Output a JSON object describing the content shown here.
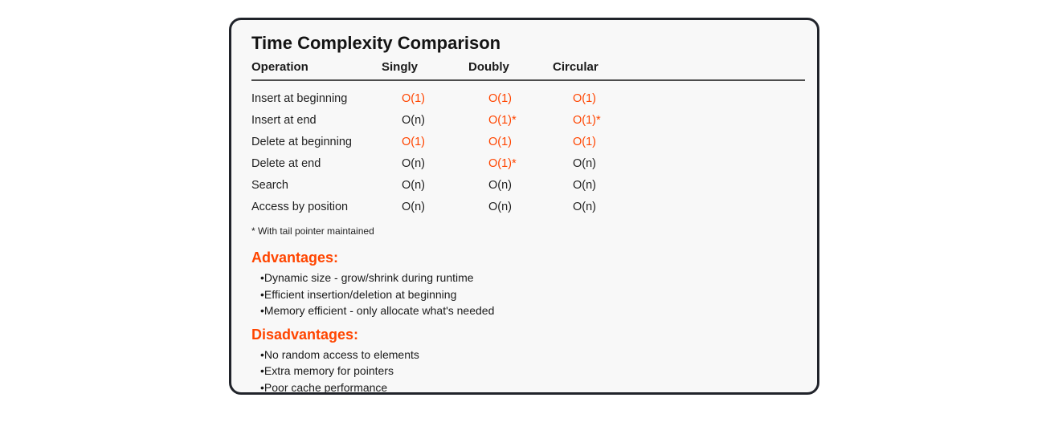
{
  "card": {
    "title": "Time Complexity Comparison",
    "table": {
      "headers": [
        "Operation",
        "Singly",
        "Doubly",
        "Circular"
      ],
      "rows": [
        {
          "operation": "Insert at beginning",
          "singly": {
            "text": "O(1)",
            "highlight": true
          },
          "doubly": {
            "text": "O(1)",
            "highlight": true
          },
          "circular": {
            "text": "O(1)",
            "highlight": true
          }
        },
        {
          "operation": "Insert at end",
          "singly": {
            "text": "O(n)",
            "highlight": false
          },
          "doubly": {
            "text": "O(1)*",
            "highlight": true
          },
          "circular": {
            "text": "O(1)*",
            "highlight": true
          }
        },
        {
          "operation": "Delete at beginning",
          "singly": {
            "text": "O(1)",
            "highlight": true
          },
          "doubly": {
            "text": "O(1)",
            "highlight": true
          },
          "circular": {
            "text": "O(1)",
            "highlight": true
          }
        },
        {
          "operation": "Delete at end",
          "singly": {
            "text": "O(n)",
            "highlight": false
          },
          "doubly": {
            "text": "O(1)*",
            "highlight": true
          },
          "circular": {
            "text": "O(n)",
            "highlight": false
          }
        },
        {
          "operation": "Search",
          "singly": {
            "text": "O(n)",
            "highlight": false
          },
          "doubly": {
            "text": "O(n)",
            "highlight": false
          },
          "circular": {
            "text": "O(n)",
            "highlight": false
          }
        },
        {
          "operation": "Access by position",
          "singly": {
            "text": "O(n)",
            "highlight": false
          },
          "doubly": {
            "text": "O(n)",
            "highlight": false
          },
          "circular": {
            "text": "O(n)",
            "highlight": false
          }
        }
      ],
      "footnote": "* With tail pointer maintained"
    },
    "advantages": {
      "heading": "Advantages:",
      "items": [
        "Dynamic size - grow/shrink during runtime",
        "Efficient insertion/deletion at beginning",
        "Memory efficient - only allocate what's needed"
      ]
    },
    "disadvantages": {
      "heading": "Disadvantages:",
      "items": [
        "No random access to elements",
        "Extra memory for pointers",
        "Poor cache performance"
      ]
    },
    "colors": {
      "accent": "#ff4500",
      "text": "#1c1c1c",
      "card_bg": "#f8f8f8",
      "card_border": "#20232a"
    }
  }
}
